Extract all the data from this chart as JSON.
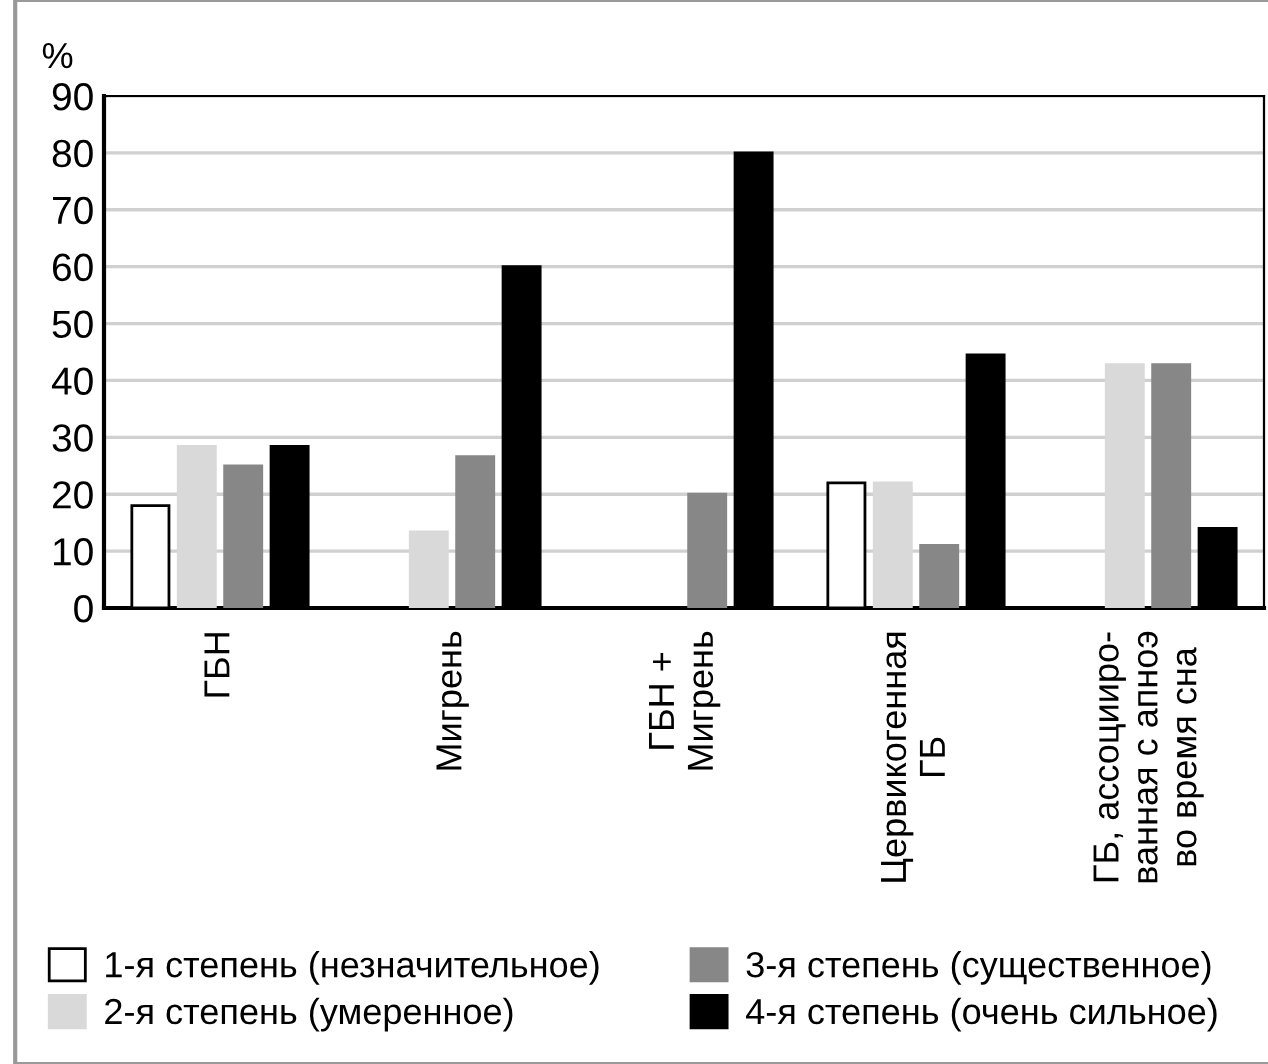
{
  "chart_data": {
    "type": "bar",
    "ylabel": "%",
    "categories": [
      "ГБН",
      "Мигрень",
      "ГБН +\nМигрень",
      "Цервикогенная\nГБ",
      "ГБ, ассоцииро-\nванная с апноэ\nво время сна"
    ],
    "series": [
      {
        "name": "1-я степень (незначительное)",
        "color": "#ffffff",
        "values": [
          18,
          null,
          null,
          22,
          null
        ]
      },
      {
        "name": "2-я степень (умеренное)",
        "color": "#d9d9d9",
        "values": [
          28.4,
          13.4,
          null,
          22,
          42.8
        ]
      },
      {
        "name": "3-я степень (существенное)",
        "color": "#878787",
        "values": [
          25,
          26.6,
          20,
          11,
          42.8
        ]
      },
      {
        "name": "4-я степень (очень сильное)",
        "color": "#000000",
        "values": [
          28.4,
          60,
          80,
          44.5,
          14
        ]
      }
    ],
    "ylim": [
      0,
      90
    ],
    "yticks": [
      0,
      10,
      20,
      30,
      40,
      50,
      60,
      70,
      80,
      90
    ],
    "grid": "y",
    "legend": "bottom"
  }
}
